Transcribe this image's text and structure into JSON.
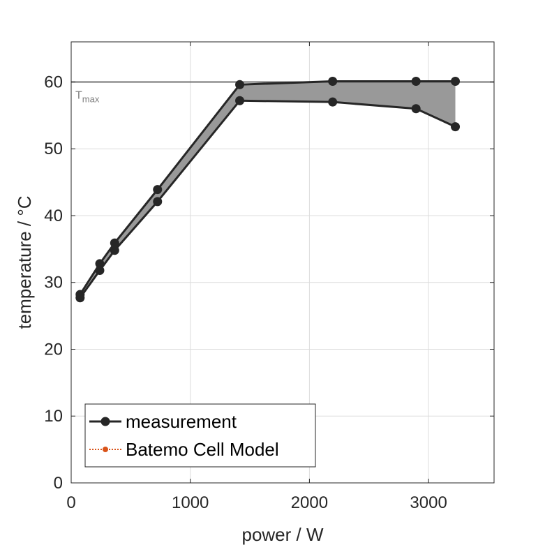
{
  "chart_data": {
    "type": "line",
    "title": "",
    "xlabel": "power / W",
    "ylabel": "temperature / °C",
    "xlim": [
      0,
      3550
    ],
    "ylim": [
      0,
      66
    ],
    "xticks": [
      0,
      1000,
      2000,
      3000
    ],
    "yticks": [
      0,
      10,
      20,
      30,
      40,
      50,
      60
    ],
    "grid": true,
    "threshold": {
      "name": "T",
      "subscript": "max",
      "value": 60
    },
    "series": [
      {
        "name": "measurement",
        "color": "#262626",
        "points": [
          {
            "x": 75,
            "y": 28.2
          },
          {
            "x": 240,
            "y": 32.8
          },
          {
            "x": 365,
            "y": 35.9
          },
          {
            "x": 725,
            "y": 43.9
          },
          {
            "x": 1415,
            "y": 59.6
          },
          {
            "x": 2195,
            "y": 60.1
          },
          {
            "x": 2895,
            "y": 60.1
          },
          {
            "x": 3225,
            "y": 60.1
          }
        ]
      },
      {
        "name": "",
        "color": "#262626",
        "points": [
          {
            "x": 75,
            "y": 27.7
          },
          {
            "x": 240,
            "y": 31.8
          },
          {
            "x": 365,
            "y": 34.8
          },
          {
            "x": 725,
            "y": 42.1
          },
          {
            "x": 1415,
            "y": 57.2
          },
          {
            "x": 2195,
            "y": 57.0
          },
          {
            "x": 2895,
            "y": 56.0
          },
          {
            "x": 3225,
            "y": 53.3
          }
        ]
      }
    ],
    "fill_color": "#999999",
    "legend": {
      "placement": "bottom-left",
      "entries": [
        {
          "label": "measurement",
          "color": "#262626",
          "style": "solid"
        },
        {
          "label": "Batemo Cell Model",
          "color": "#d95319",
          "style": "dotted"
        }
      ]
    }
  }
}
